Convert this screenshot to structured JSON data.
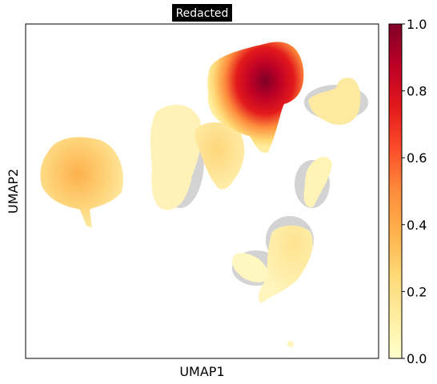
{
  "chart_data": {
    "type": "scatter",
    "title": "Redacted",
    "xlabel": "UMAP1",
    "ylabel": "UMAP2",
    "colorbar": {
      "ticks": [
        "0.0",
        "0.2",
        "0.4",
        "0.6",
        "0.8",
        "1.0"
      ],
      "range": [
        0,
        1
      ],
      "colormap": "YlOrRd",
      "colors": [
        "#ffffcc",
        "#ffeda0",
        "#fed976",
        "#feb24c",
        "#fd8d3c",
        "#fc4e2a",
        "#e31a1c",
        "#bd0026",
        "#800026"
      ]
    },
    "background_color": "#d3d3d3",
    "grid": false,
    "clusters": [
      {
        "id": "left-blob",
        "density": 0.45
      },
      {
        "id": "top-center-hotspot",
        "density": 1.0
      },
      {
        "id": "top-right",
        "density": 0.15
      },
      {
        "id": "center-left",
        "density": 0.05
      },
      {
        "id": "center",
        "density": 0.2
      },
      {
        "id": "right-middle",
        "density": 0.1
      },
      {
        "id": "bottom-right",
        "density": 0.15
      }
    ]
  }
}
